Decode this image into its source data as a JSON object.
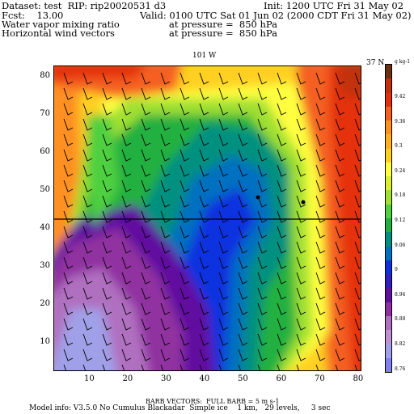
{
  "header": {
    "dataset": "Dataset: test  RIP: rip20020531 d3",
    "init": "Init: 1200 UTC Fri 31 May 02",
    "fcst": "Fcst:    13.00",
    "valid": "Valid: 0100 UTC Sat 01 Jun 02 (2000 CDT Fri 31 May 02)",
    "field1": "Water vapor mixing ratio",
    "field1_level": "at pressure =  850 hPa",
    "field2": "Horizontal wind vectors",
    "field2_level": "at pressure =  850 hPa"
  },
  "plot": {
    "top_label": "101 W",
    "right_label": "37 N",
    "y_ticks": [
      "10",
      "20",
      "30",
      "40",
      "50",
      "60",
      "70",
      "80"
    ],
    "x_ticks": [
      "10",
      "20",
      "30",
      "40",
      "50",
      "60",
      "70",
      "80"
    ]
  },
  "colorbar": {
    "unit": "g kg-1",
    "labels": [
      "9.42",
      "9.36",
      "9.3",
      "9.24",
      "9.18",
      "9.12",
      "9.06",
      "9",
      "8.94",
      "8.88",
      "8.82",
      "8.76"
    ],
    "colors": [
      "#6a3010",
      "#c23010",
      "#e53010",
      "#f56020",
      "#ff9020",
      "#ffb020",
      "#ffd020",
      "#ffff40",
      "#d8f030",
      "#a0e030",
      "#50d040",
      "#20b040",
      "#009080",
      "#0070c0",
      "#1030e0",
      "#3020c0",
      "#6010a0",
      "#9030a0",
      "#b070c0",
      "#c090d0",
      "#a0a0e8",
      "#8080f0"
    ]
  },
  "footer": {
    "barb_vectors": "BARB VECTORS:  FULL BARB = 5 m s-1",
    "model_info": "Model info: V3.5.0 No Cumulus Blackadar  Simple ice    1 km,   29 levels,     3 sec"
  }
}
